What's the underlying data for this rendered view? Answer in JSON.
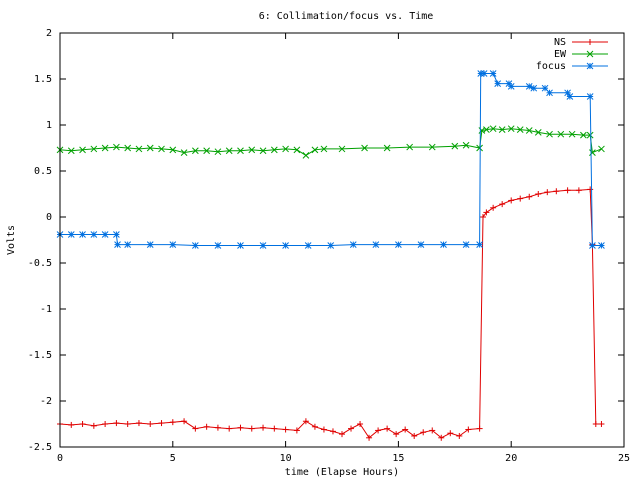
{
  "chart_data": {
    "type": "line",
    "title": "6: Collimation/focus vs. Time",
    "xlabel": "time (Elapse Hours)",
    "ylabel": "Volts",
    "xlim": [
      0,
      25
    ],
    "ylim": [
      -2.5,
      2
    ],
    "xticks": [
      "0",
      "5",
      "10",
      "15",
      "20",
      "25"
    ],
    "yticks": [
      "-2.5",
      "-2",
      "-1.5",
      "-1",
      "-0.5",
      "0",
      "0.5",
      "1",
      "1.5",
      "2"
    ],
    "grid": false,
    "legend_position": "top-right",
    "series": [
      {
        "name": "NS",
        "color": "#e00000",
        "marker": "plus",
        "x": [
          0.0,
          0.5,
          1.0,
          1.5,
          2.0,
          2.5,
          3.0,
          3.5,
          4.0,
          4.5,
          5.0,
          5.5,
          6.0,
          6.5,
          7.0,
          7.5,
          8.0,
          8.5,
          9.0,
          9.5,
          10.0,
          10.5,
          10.9,
          11.3,
          11.7,
          12.1,
          12.5,
          12.9,
          13.3,
          13.7,
          14.1,
          14.5,
          14.9,
          15.3,
          15.7,
          16.1,
          16.5,
          16.9,
          17.3,
          17.7,
          18.1,
          18.6,
          18.75,
          18.9,
          19.2,
          19.6,
          20.0,
          20.4,
          20.8,
          21.2,
          21.6,
          22.0,
          22.5,
          23.0,
          23.5,
          23.6,
          23.75,
          24.0
        ],
        "y": [
          -2.25,
          -2.26,
          -2.25,
          -2.27,
          -2.25,
          -2.24,
          -2.25,
          -2.24,
          -2.25,
          -2.24,
          -2.23,
          -2.22,
          -2.3,
          -2.28,
          -2.29,
          -2.3,
          -2.29,
          -2.3,
          -2.29,
          -2.3,
          -2.31,
          -2.32,
          -2.22,
          -2.28,
          -2.31,
          -2.33,
          -2.36,
          -2.3,
          -2.25,
          -2.4,
          -2.32,
          -2.3,
          -2.36,
          -2.31,
          -2.38,
          -2.34,
          -2.32,
          -2.4,
          -2.35,
          -2.38,
          -2.31,
          -2.3,
          0.0,
          0.05,
          0.1,
          0.14,
          0.18,
          0.2,
          0.22,
          0.25,
          0.27,
          0.28,
          0.29,
          0.29,
          0.3,
          -0.3,
          -2.25,
          -2.25
        ]
      },
      {
        "name": "EW",
        "color": "#00a000",
        "marker": "cross",
        "x": [
          0.0,
          0.5,
          1.0,
          1.5,
          2.0,
          2.5,
          3.0,
          3.5,
          4.0,
          4.5,
          5.0,
          5.5,
          6.0,
          6.5,
          7.0,
          7.5,
          8.0,
          8.5,
          9.0,
          9.5,
          10.0,
          10.5,
          10.9,
          11.3,
          11.7,
          12.5,
          13.5,
          14.5,
          15.5,
          16.5,
          17.5,
          18.0,
          18.6,
          18.7,
          18.9,
          19.2,
          19.6,
          20.0,
          20.4,
          20.8,
          21.2,
          21.7,
          22.2,
          22.7,
          23.2,
          23.5,
          23.6,
          24.0
        ],
        "y": [
          0.73,
          0.72,
          0.73,
          0.74,
          0.75,
          0.76,
          0.75,
          0.74,
          0.75,
          0.74,
          0.73,
          0.7,
          0.72,
          0.72,
          0.71,
          0.72,
          0.72,
          0.73,
          0.72,
          0.73,
          0.74,
          0.73,
          0.67,
          0.73,
          0.74,
          0.74,
          0.75,
          0.75,
          0.76,
          0.76,
          0.77,
          0.78,
          0.75,
          0.94,
          0.95,
          0.96,
          0.95,
          0.96,
          0.95,
          0.94,
          0.92,
          0.9,
          0.9,
          0.9,
          0.89,
          0.89,
          0.7,
          0.74
        ]
      },
      {
        "name": "focus",
        "color": "#0070e0",
        "marker": "star",
        "x": [
          0.0,
          0.5,
          1.0,
          1.5,
          2.0,
          2.5,
          2.55,
          3.0,
          4.0,
          5.0,
          6.0,
          7.0,
          8.0,
          9.0,
          10.0,
          11.0,
          12.0,
          13.0,
          14.0,
          15.0,
          16.0,
          17.0,
          18.0,
          18.6,
          18.65,
          18.8,
          19.2,
          19.4,
          19.9,
          20.0,
          20.8,
          21.0,
          21.5,
          21.7,
          22.5,
          22.6,
          23.5,
          23.6,
          24.0
        ],
        "y": [
          -0.19,
          -0.19,
          -0.19,
          -0.19,
          -0.19,
          -0.19,
          -0.3,
          -0.3,
          -0.3,
          -0.3,
          -0.31,
          -0.31,
          -0.31,
          -0.31,
          -0.31,
          -0.31,
          -0.31,
          -0.3,
          -0.3,
          -0.3,
          -0.3,
          -0.3,
          -0.3,
          -0.3,
          1.56,
          1.56,
          1.56,
          1.45,
          1.45,
          1.42,
          1.42,
          1.4,
          1.4,
          1.35,
          1.35,
          1.31,
          1.31,
          -0.31,
          -0.31
        ]
      }
    ]
  }
}
